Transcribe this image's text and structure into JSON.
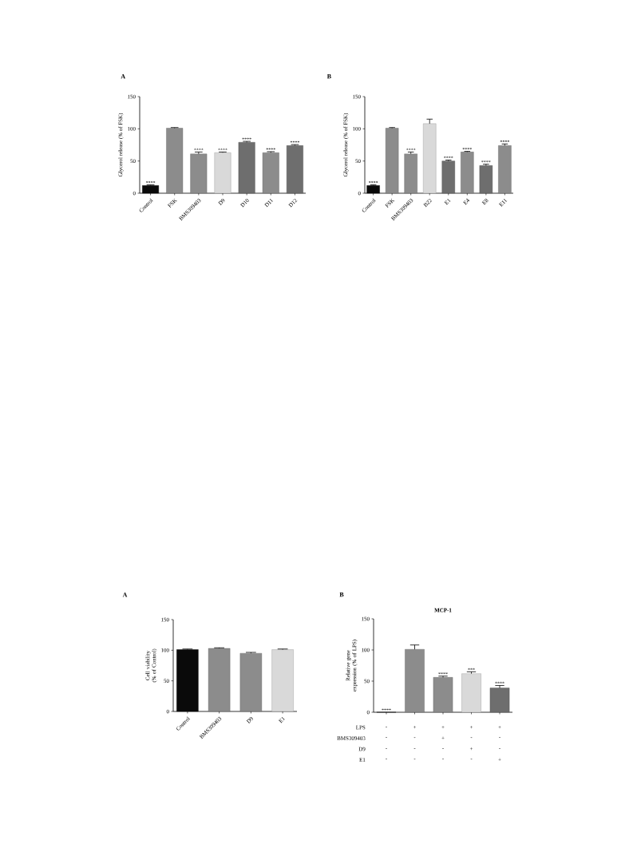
{
  "chart_data": [
    {
      "type": "bar",
      "ylabel": "Glycerol release (% of FSK)",
      "annotations": [
        "A"
      ],
      "categories": [
        "Control",
        "FSK",
        "BMS309403",
        "D9",
        "D10",
        "D11",
        "D12"
      ],
      "values": [
        12,
        101,
        61,
        63,
        79,
        63,
        74
      ],
      "errors": [
        [
          12,
          13
        ],
        [
          101,
          102
        ],
        [
          61,
          64
        ],
        [
          63,
          64
        ],
        [
          79,
          80.5
        ],
        [
          63,
          64.5
        ],
        [
          74,
          75.5
        ]
      ],
      "value_labels": [
        "****",
        null,
        "****",
        "****",
        "****",
        "****",
        "****"
      ],
      "colors": [
        "#0a0a0a",
        "#8c8c8c",
        "#8c8c8c",
        "#d9d9d9",
        "#6e6e6e",
        "#8c8c8c",
        "#6e6e6e"
      ],
      "ylim": [
        0,
        150
      ],
      "yticks": [
        0,
        50,
        100,
        150
      ]
    },
    {
      "type": "bar",
      "ylabel": "Glycerol release (% of FSK)",
      "annotations": [
        "B"
      ],
      "categories": [
        "Control",
        "FSK",
        "BMS309403",
        "B22",
        "E1",
        "E4",
        "E8",
        "E11"
      ],
      "values": [
        12,
        101,
        61,
        108,
        50,
        64,
        43,
        74
      ],
      "errors": [
        [
          12,
          13
        ],
        [
          101,
          102
        ],
        [
          61,
          64
        ],
        [
          108,
          115
        ],
        [
          50,
          51.5
        ],
        [
          64,
          65
        ],
        [
          43,
          45
        ],
        [
          74,
          76.5
        ]
      ],
      "value_labels": [
        "****",
        null,
        "****",
        null,
        "****",
        "****",
        "****",
        "****"
      ],
      "colors": [
        "#0a0a0a",
        "#8c8c8c",
        "#8c8c8c",
        "#d9d9d9",
        "#6e6e6e",
        "#8c8c8c",
        "#6e6e6e",
        "#8c8c8c"
      ],
      "ylim": [
        0,
        150
      ],
      "yticks": [
        0,
        50,
        100,
        150
      ]
    },
    {
      "type": "bar",
      "ylabel": "Cell viability (% of Control)",
      "annotations": [
        "A"
      ],
      "categories": [
        "Control",
        "BMS309403",
        "D9",
        "E1"
      ],
      "values": [
        101,
        103,
        95,
        101
      ],
      "errors": [
        [
          101,
          102
        ],
        [
          103,
          104
        ],
        [
          95,
          96.5
        ],
        [
          101,
          102
        ]
      ],
      "colors": [
        "#0a0a0a",
        "#8c8c8c",
        "#8c8c8c",
        "#d9d9d9"
      ],
      "ylim": [
        0,
        150
      ],
      "yticks": [
        0,
        50,
        100,
        150
      ]
    },
    {
      "type": "bar",
      "title": "MCP-1",
      "ylabel": "Relative gene expression (% of LPS)",
      "annotations": [
        "B",
        "LPS",
        "BMS309403",
        "D9",
        "E1",
        "-",
        "+",
        "+",
        "+",
        "+",
        "-",
        "-",
        "+",
        "-",
        "-",
        "-",
        "-",
        "-",
        "+",
        "-",
        "-",
        "-",
        "-",
        "-",
        "+"
      ],
      "categories": [
        null,
        null,
        null,
        null,
        null
      ],
      "values": [
        0,
        101,
        56,
        62,
        39
      ],
      "errors": [
        null,
        [
          101,
          108
        ],
        [
          56,
          58
        ],
        [
          62,
          65
        ],
        [
          39,
          43
        ]
      ],
      "value_labels": [
        "****",
        null,
        "****",
        "***",
        "****"
      ],
      "colors": [
        "#0a0a0a",
        "#8c8c8c",
        "#8c8c8c",
        "#d9d9d9",
        "#6e6e6e"
      ],
      "ylim": [
        0,
        150
      ],
      "yticks": [
        0,
        50,
        100,
        150
      ]
    }
  ]
}
